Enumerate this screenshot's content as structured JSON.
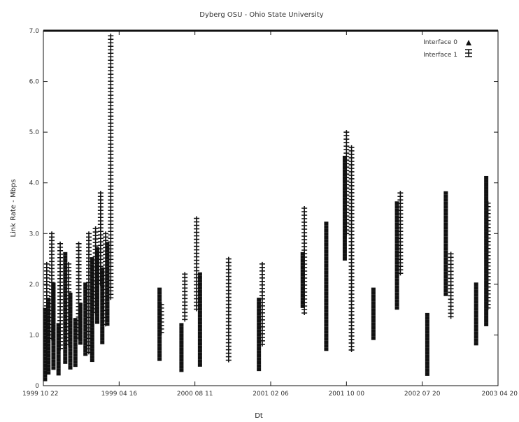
{
  "chart_data": {
    "type": "scatter",
    "title": "Dyberg OSU - Ohio State University",
    "xlabel": "Dt",
    "ylabel": "Link Rate - Mbps",
    "x_ticks": [
      "1999 10 22",
      "1999 04 16",
      "2000 08 11",
      "2001 02 06",
      "2001 10 00",
      "2002 07 20",
      "2003 04 20"
    ],
    "ylim": [
      0,
      7
    ],
    "y_ticks": [
      "0",
      "1.0",
      "2.0",
      "3.0",
      "4.0",
      "5.0",
      "6.0",
      "7.0"
    ],
    "legend_position": "top-right",
    "series": [
      {
        "name": "Interface 0",
        "marker": "solid",
        "columns": [
          {
            "x": 0.1,
            "ymin": 0.1,
            "ymax": 1.5
          },
          {
            "x": 0.3,
            "ymin": 0.2,
            "ymax": 1.7
          },
          {
            "x": 0.6,
            "ymin": 0.3,
            "ymax": 2.0
          },
          {
            "x": 0.9,
            "ymin": 0.2,
            "ymax": 1.2
          },
          {
            "x": 1.3,
            "ymin": 0.4,
            "ymax": 2.6
          },
          {
            "x": 1.6,
            "ymin": 0.3,
            "ymax": 1.8
          },
          {
            "x": 1.9,
            "ymin": 0.4,
            "ymax": 1.3
          },
          {
            "x": 2.2,
            "ymin": 0.8,
            "ymax": 1.6
          },
          {
            "x": 2.5,
            "ymin": 0.6,
            "ymax": 2.0
          },
          {
            "x": 2.9,
            "ymin": 0.5,
            "ymax": 2.5
          },
          {
            "x": 3.2,
            "ymin": 1.2,
            "ymax": 2.7
          },
          {
            "x": 3.5,
            "ymin": 0.8,
            "ymax": 2.3
          },
          {
            "x": 3.8,
            "ymin": 1.2,
            "ymax": 2.8
          },
          {
            "x": 6.9,
            "ymin": 0.5,
            "ymax": 1.9
          },
          {
            "x": 8.2,
            "ymin": 0.3,
            "ymax": 1.2
          },
          {
            "x": 9.3,
            "ymin": 0.4,
            "ymax": 2.2
          },
          {
            "x": 12.8,
            "ymin": 0.3,
            "ymax": 1.7
          },
          {
            "x": 15.4,
            "ymin": 1.5,
            "ymax": 2.6
          },
          {
            "x": 16.8,
            "ymin": 0.7,
            "ymax": 3.2
          },
          {
            "x": 17.9,
            "ymin": 2.5,
            "ymax": 4.5
          },
          {
            "x": 19.6,
            "ymin": 0.9,
            "ymax": 1.9
          },
          {
            "x": 21.0,
            "ymin": 1.5,
            "ymax": 3.6
          },
          {
            "x": 22.8,
            "ymin": 0.2,
            "ymax": 1.4
          },
          {
            "x": 23.9,
            "ymin": 1.8,
            "ymax": 3.8
          },
          {
            "x": 25.7,
            "ymin": 0.8,
            "ymax": 2.0
          },
          {
            "x": 26.3,
            "ymin": 1.2,
            "ymax": 4.1
          }
        ]
      },
      {
        "name": "Interface 1",
        "marker": "plus",
        "columns": [
          {
            "x": 0.2,
            "ymin": 0.6,
            "ymax": 2.4
          },
          {
            "x": 0.5,
            "ymin": 0.9,
            "ymax": 3.0
          },
          {
            "x": 1.0,
            "ymin": 0.7,
            "ymax": 2.8
          },
          {
            "x": 1.5,
            "ymin": 0.8,
            "ymax": 2.4
          },
          {
            "x": 2.1,
            "ymin": 0.9,
            "ymax": 2.8
          },
          {
            "x": 2.7,
            "ymin": 0.6,
            "ymax": 3.0
          },
          {
            "x": 3.1,
            "ymin": 1.4,
            "ymax": 3.1
          },
          {
            "x": 3.4,
            "ymin": 2.0,
            "ymax": 3.8
          },
          {
            "x": 3.7,
            "ymin": 1.2,
            "ymax": 3.0
          },
          {
            "x": 4.0,
            "ymin": 1.7,
            "ymax": 6.9
          },
          {
            "x": 7.0,
            "ymin": 1.0,
            "ymax": 1.6
          },
          {
            "x": 8.4,
            "ymin": 1.3,
            "ymax": 2.2
          },
          {
            "x": 9.1,
            "ymin": 1.5,
            "ymax": 3.3
          },
          {
            "x": 11.0,
            "ymin": 0.5,
            "ymax": 2.5
          },
          {
            "x": 13.0,
            "ymin": 0.8,
            "ymax": 2.4
          },
          {
            "x": 15.5,
            "ymin": 1.4,
            "ymax": 3.5
          },
          {
            "x": 18.0,
            "ymin": 3.0,
            "ymax": 5.0
          },
          {
            "x": 18.3,
            "ymin": 0.7,
            "ymax": 4.7
          },
          {
            "x": 21.2,
            "ymin": 2.2,
            "ymax": 3.8
          },
          {
            "x": 24.2,
            "ymin": 1.3,
            "ymax": 2.6
          },
          {
            "x": 26.4,
            "ymin": 1.5,
            "ymax": 3.6
          }
        ]
      }
    ],
    "xlim": [
      0,
      27
    ]
  }
}
